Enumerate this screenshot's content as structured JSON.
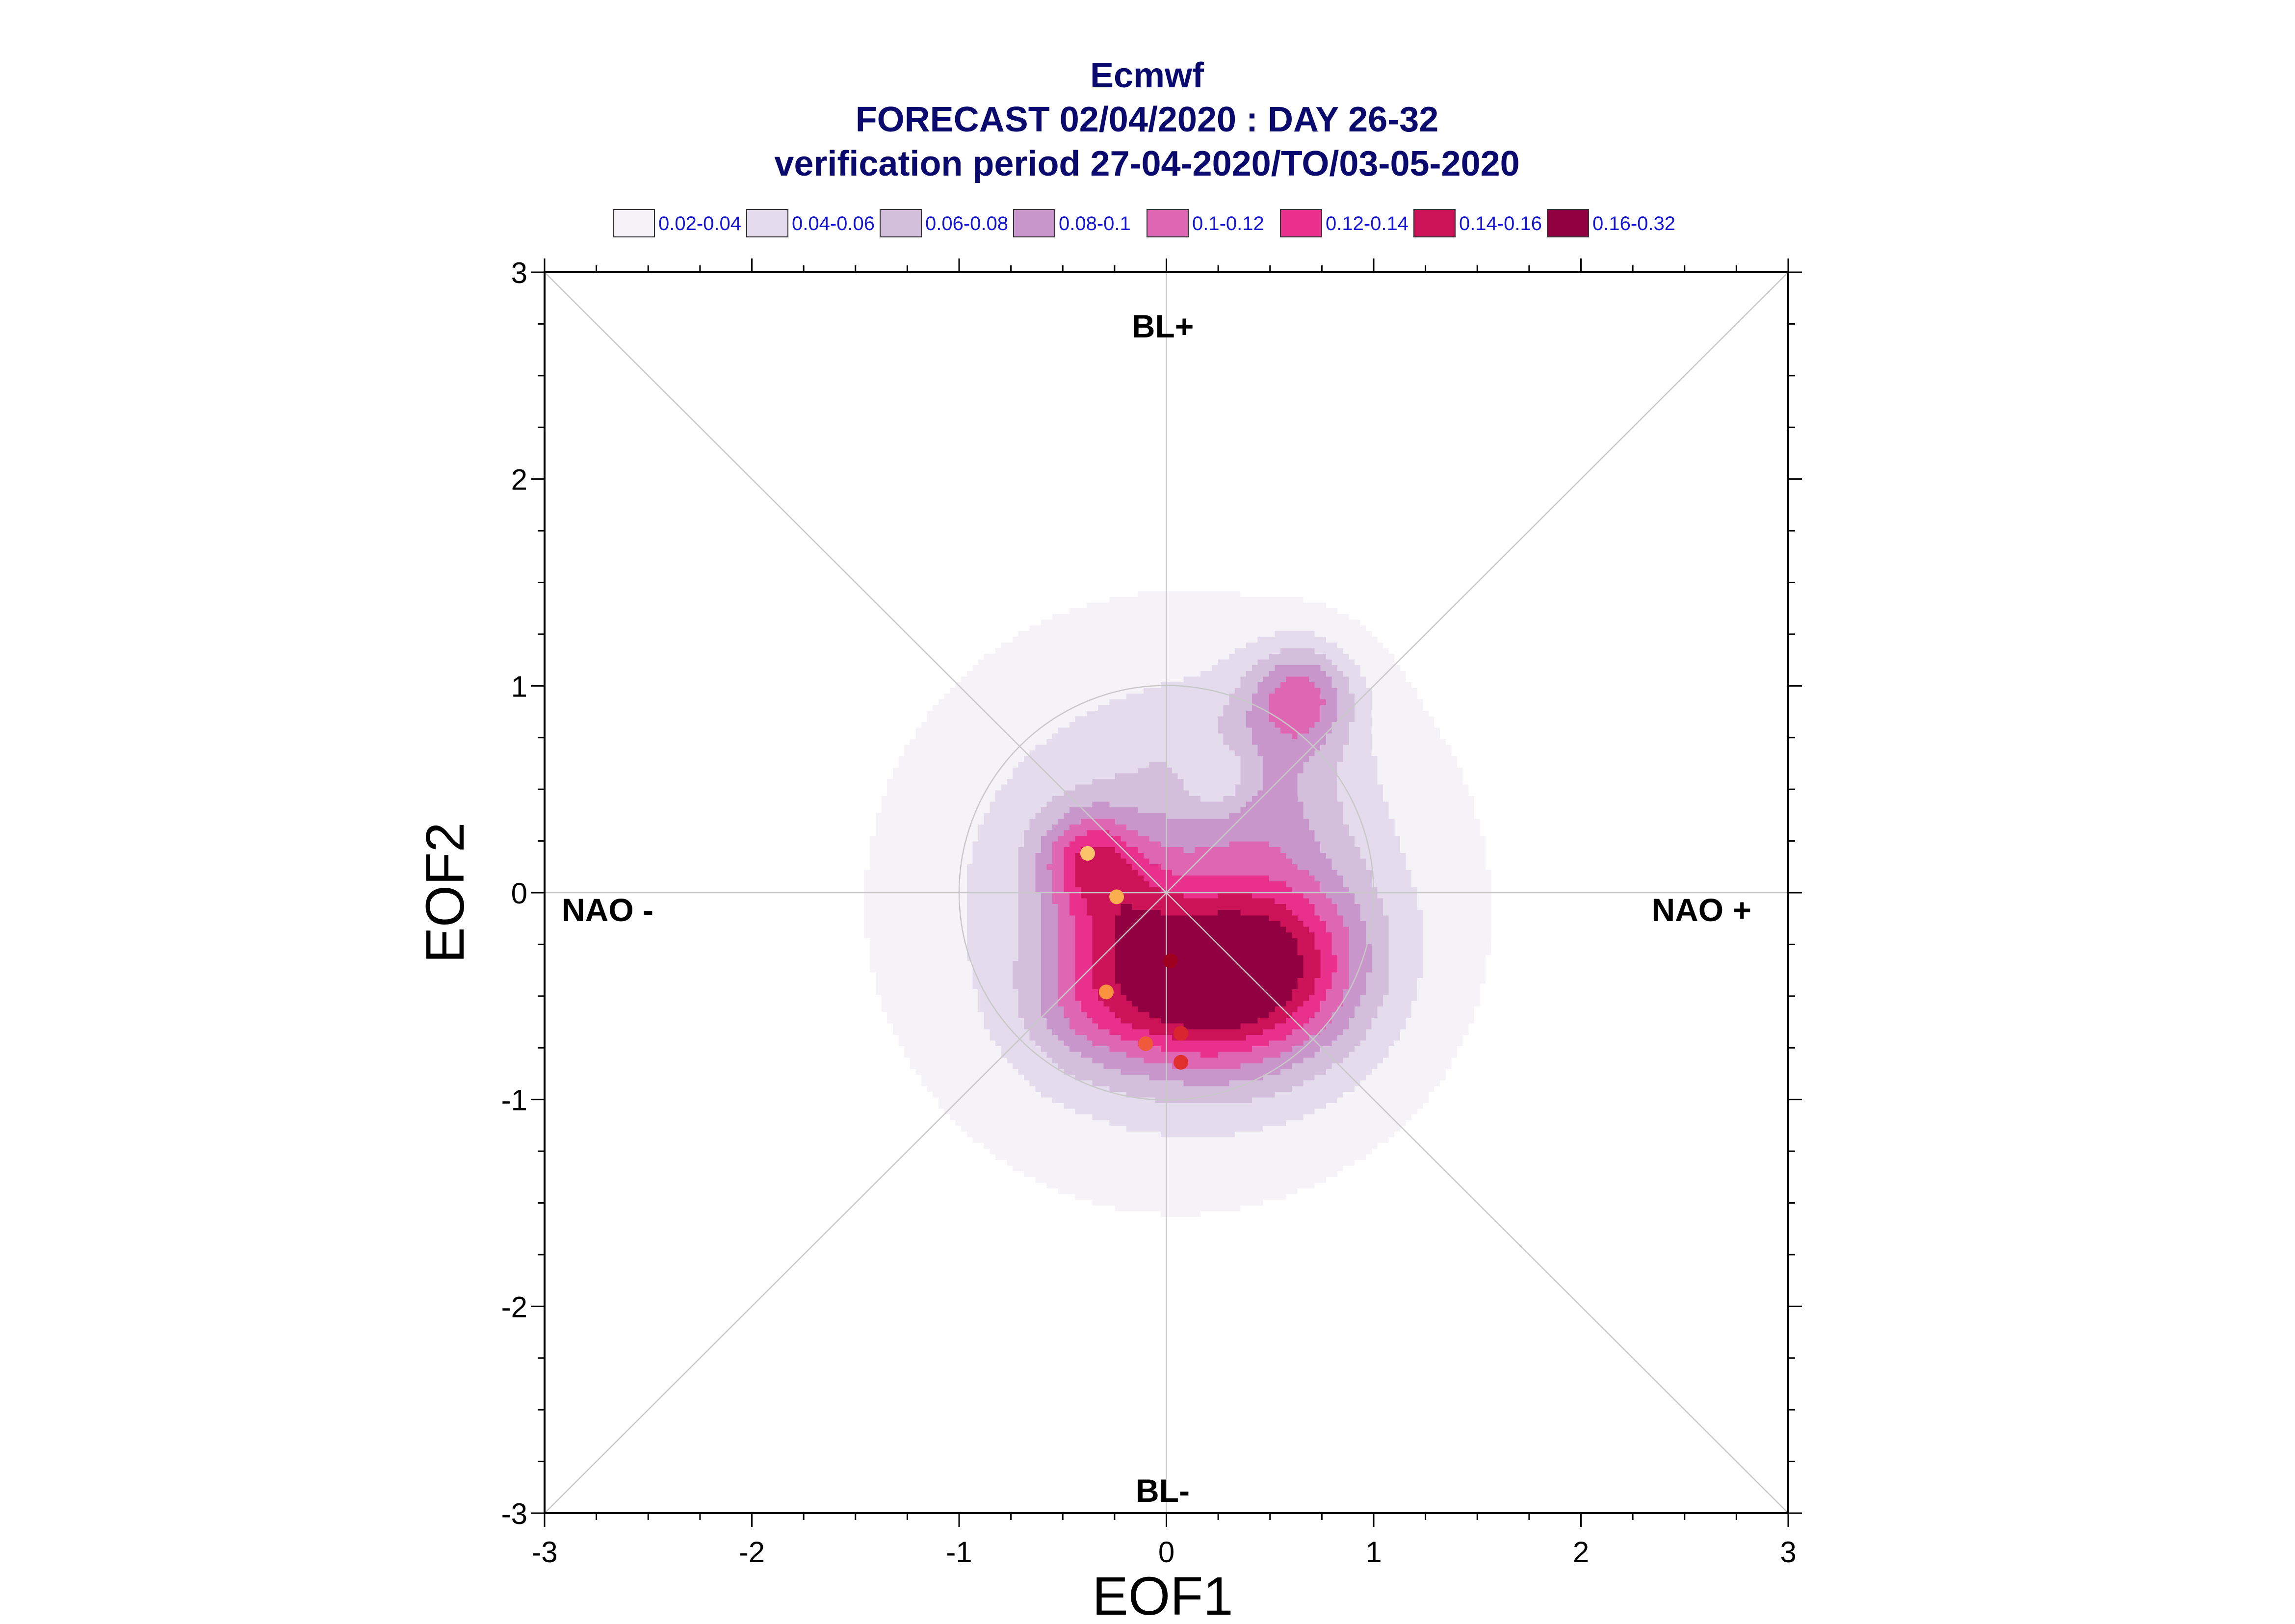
{
  "chart_data": {
    "type": "contour",
    "title": "Ecmwf",
    "subtitle_lines": [
      "FORECAST 02/04/2020 : DAY 26-32",
      "verification period 27-04-2020/TO/03-05-2020"
    ],
    "xlabel": "EOF1",
    "ylabel": "EOF2",
    "xlim": [
      -3,
      3
    ],
    "ylim": [
      -3,
      3
    ],
    "xticks": [
      "-3",
      "-2",
      "-1",
      "0",
      "1",
      "2",
      "3"
    ],
    "yticks": [
      "-3",
      "-2",
      "-1",
      "0",
      "1",
      "2",
      "3"
    ],
    "legend_position": "top",
    "levels": [
      {
        "label": "0.02-0.04",
        "color": "#f5f2f8"
      },
      {
        "label": "0.04-0.06",
        "color": "#e4dbec"
      },
      {
        "label": "0.06-0.08",
        "color": "#d3bfdb"
      },
      {
        "label": "0.08-0.1",
        "color": "#c996cb"
      },
      {
        "label": "0.1-0.12",
        "color": "#df66b2"
      },
      {
        "label": "0.12-0.14",
        "color": "#e8308c"
      },
      {
        "label": "0.14-0.16",
        "color": "#cd1358"
      },
      {
        "label": "0.16-0.32",
        "color": "#910040"
      }
    ],
    "regime_labels": {
      "top": "BL+",
      "bottom": "BL-",
      "left": "NAO -",
      "right": "NAO +"
    },
    "points": [
      {
        "x": -0.38,
        "y": 0.19,
        "color": "#fcc46a"
      },
      {
        "x": -0.24,
        "y": -0.02,
        "color": "#fbae4f"
      },
      {
        "x": -0.29,
        "y": -0.48,
        "color": "#fa9240"
      },
      {
        "x": -0.1,
        "y": -0.73,
        "color": "#f0593a"
      },
      {
        "x": 0.02,
        "y": -0.33,
        "color": "#a00020"
      },
      {
        "x": 0.07,
        "y": -0.68,
        "color": "#d7262e"
      },
      {
        "x": 0.07,
        "y": -0.82,
        "color": "#e0302e"
      }
    ],
    "unit_circle_radius": 1
  }
}
